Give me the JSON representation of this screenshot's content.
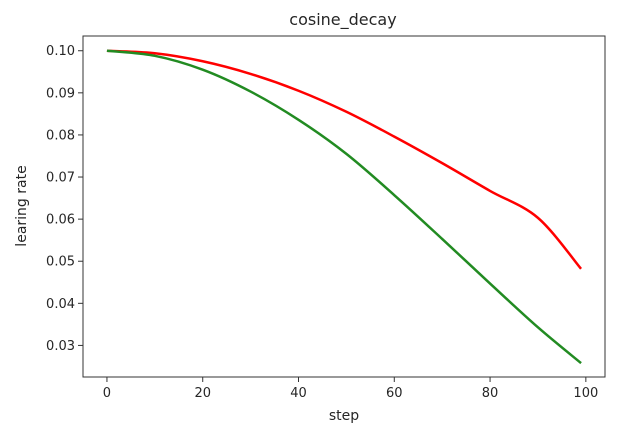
{
  "chart_data": {
    "type": "line",
    "title": "cosine_decay",
    "xlabel": "step",
    "ylabel": "learing rate",
    "xlim": [
      -5,
      104
    ],
    "ylim": [
      0.0225,
      0.1035
    ],
    "xticks": [
      0,
      20,
      40,
      60,
      80,
      100
    ],
    "yticks": [
      0.03,
      0.04,
      0.05,
      0.06,
      0.07,
      0.08,
      0.09,
      0.1
    ],
    "ytick_labels": [
      "0.03",
      "0.04",
      "0.05",
      "0.06",
      "0.07",
      "0.08",
      "0.09",
      "0.10"
    ],
    "grid": false,
    "series": [
      {
        "color": "#ff0000",
        "x": [
          0,
          10,
          20,
          30,
          40,
          50,
          60,
          70,
          80,
          90,
          99
        ],
        "values": [
          0.1,
          0.0994,
          0.0975,
          0.0945,
          0.0905,
          0.0855,
          0.0796,
          0.0733,
          0.0667,
          0.0603,
          0.0482
        ]
      },
      {
        "color": "#228b22",
        "x": [
          0,
          10,
          20,
          30,
          40,
          50,
          60,
          70,
          80,
          90,
          99
        ],
        "values": [
          0.1,
          0.0988,
          0.0955,
          0.0903,
          0.0836,
          0.0755,
          0.0657,
          0.0553,
          0.0447,
          0.0343,
          0.0258
        ]
      }
    ]
  }
}
